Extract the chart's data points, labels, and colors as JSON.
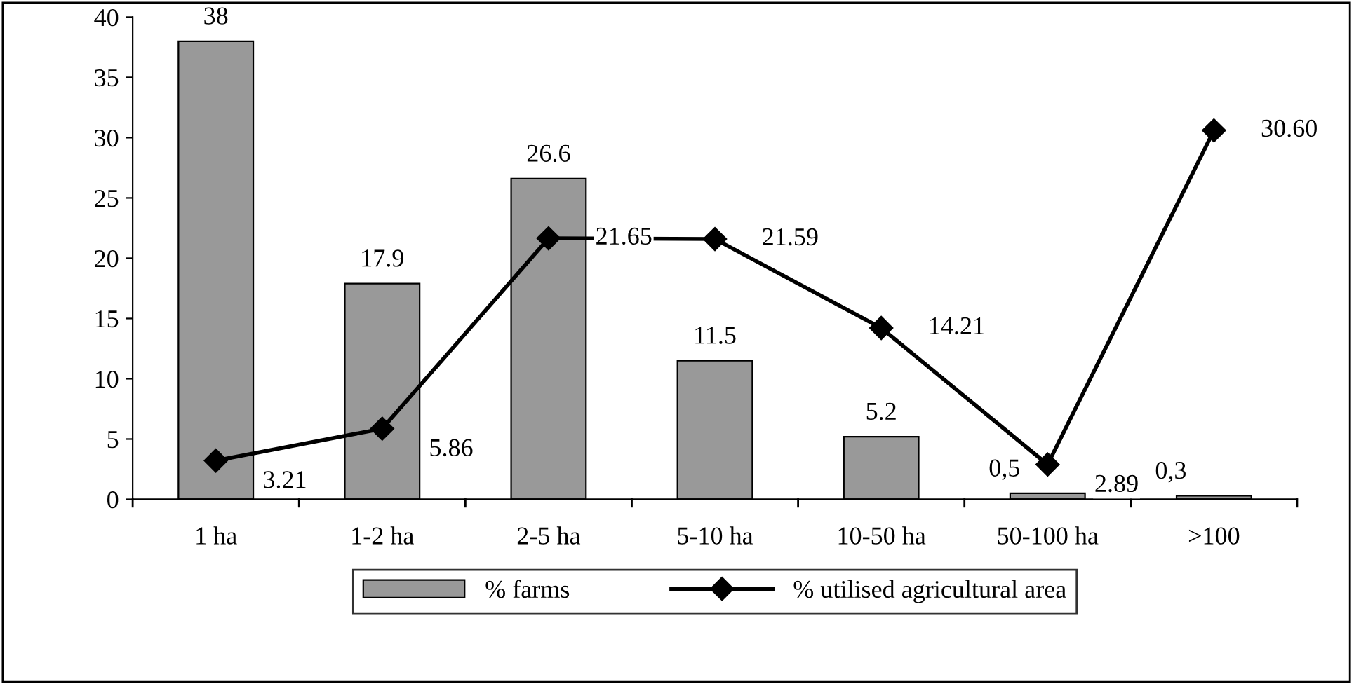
{
  "chart_data": {
    "type": "bar",
    "categories": [
      "1 ha",
      "1-2 ha",
      "2-5 ha",
      "5-10 ha",
      "10-50 ha",
      "50-100 ha",
      ">100"
    ],
    "series": [
      {
        "name": "% farms",
        "color": "#999999",
        "values": [
          38,
          17.9,
          26.6,
          11.5,
          5.2,
          0.5,
          0.3
        ],
        "value_labels": [
          "38",
          "17.9",
          "26.6",
          "11.5",
          "5.2",
          "0,5",
          "0,3"
        ]
      },
      {
        "name": "% utilised agricultural area",
        "type": "line",
        "color": "#000000",
        "marker": "diamond",
        "values": [
          3.21,
          5.86,
          21.65,
          21.59,
          14.21,
          2.89,
          30.6
        ],
        "value_labels": [
          "3.21",
          "5.86",
          "21.65",
          "21.59",
          "14.21",
          "2.89",
          "30.60"
        ]
      }
    ],
    "ylim": [
      0,
      40
    ],
    "yticks": [
      0,
      5,
      10,
      15,
      20,
      25,
      30,
      35,
      40
    ],
    "grid": false,
    "legend": "bottom"
  }
}
